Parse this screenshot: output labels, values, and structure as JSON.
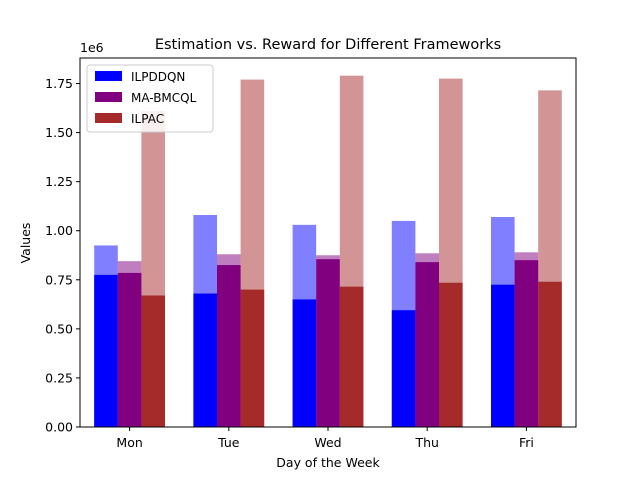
{
  "chart_data": {
    "type": "bar",
    "title": "Estimation vs. Reward for Different Frameworks",
    "xlabel": "Day of the Week",
    "ylabel": "Values",
    "y_offset_label": "1e6",
    "categories": [
      "Mon",
      "Tue",
      "Wed",
      "Thu",
      "Fri"
    ],
    "ylim": [
      0,
      1880000
    ],
    "yticks": [
      0,
      250000,
      500000,
      750000,
      1000000,
      1250000,
      1500000,
      1750000
    ],
    "ytick_labels": [
      "0.00",
      "0.25",
      "0.50",
      "0.75",
      "1.00",
      "1.25",
      "1.50",
      "1.75"
    ],
    "legend_position": "upper-left",
    "grid": false,
    "series": [
      {
        "name": "ILPDDQN",
        "color": "#0000ff",
        "reward": [
          775000,
          680000,
          650000,
          595000,
          725000
        ],
        "estimation": [
          925000,
          1080000,
          1030000,
          1050000,
          1070000
        ]
      },
      {
        "name": "MA-BMCQL",
        "color": "#800080",
        "reward": [
          785000,
          825000,
          855000,
          840000,
          850000
        ],
        "estimation": [
          845000,
          880000,
          875000,
          885000,
          890000
        ]
      },
      {
        "name": "ILPAC",
        "color": "#a52a2a",
        "reward": [
          670000,
          700000,
          715000,
          735000,
          740000
        ],
        "estimation": [
          1610000,
          1770000,
          1790000,
          1775000,
          1715000
        ]
      }
    ]
  }
}
